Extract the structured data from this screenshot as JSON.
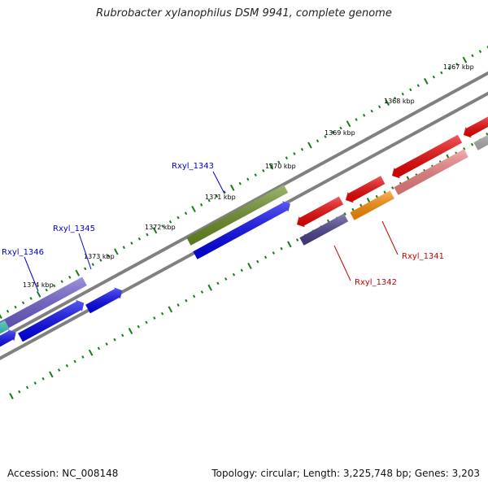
{
  "title": "Rubrobacter xylanophilus DSM 9941, complete genome",
  "footer": {
    "accession": "Accession: NC_008148",
    "topology": "Topology: circular; Length: 3,225,748 bp; Genes: 3,203"
  },
  "kbp_ticks": [
    {
      "label": "1367 kbp"
    },
    {
      "label": "1368 kbp"
    },
    {
      "label": "1369 kbp"
    },
    {
      "label": "1370 kbp"
    },
    {
      "label": "1371 kbp"
    },
    {
      "label": "1372 kbp"
    },
    {
      "label": "1373 kbp"
    },
    {
      "label": "1374 kbp"
    }
  ],
  "gene_labels": [
    {
      "text": "Rxyl_1343",
      "color": "#0000cc"
    },
    {
      "text": "Rxyl_1345",
      "color": "#0000cc"
    },
    {
      "text": "Rxyl_1346",
      "color": "#0000cc"
    },
    {
      "text": "Rxyl_1341",
      "color": "#cc0000"
    },
    {
      "text": "Rxyl_1342",
      "color": "#cc0000"
    }
  ],
  "colors": {
    "backbone": "#808080",
    "tick": "#1a7a1a",
    "forward_gene": "#0000ee",
    "reverse_gene": "#ee0000"
  }
}
